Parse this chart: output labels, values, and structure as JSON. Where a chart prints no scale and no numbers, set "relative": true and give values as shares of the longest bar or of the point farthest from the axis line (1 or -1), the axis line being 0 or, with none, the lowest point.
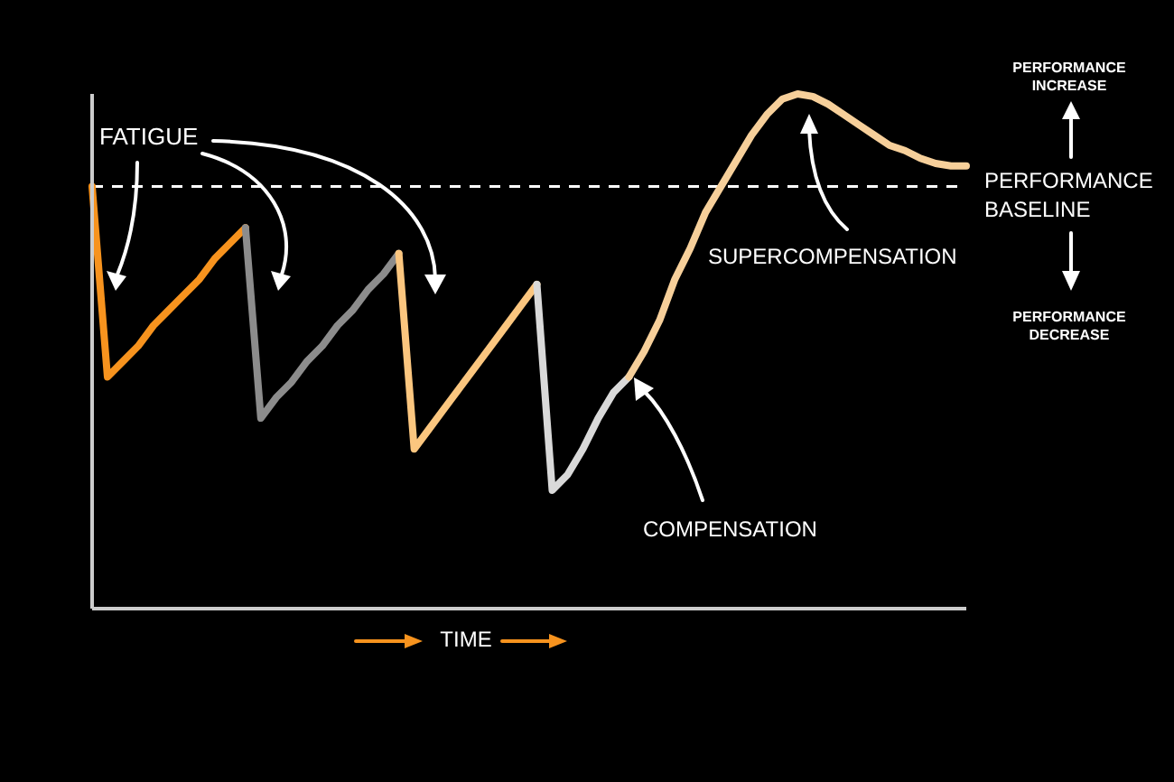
{
  "chart_data": {
    "type": "line",
    "relative": true,
    "xlabel": "TIME",
    "marker": "none",
    "line_style": "solid",
    "categories": [
      null,
      null,
      null,
      null,
      null,
      null,
      null,
      null,
      null,
      null,
      null,
      null,
      null,
      null,
      null,
      null,
      null,
      null,
      null,
      null,
      null,
      null,
      null,
      null,
      null,
      null,
      null,
      null,
      null,
      null,
      null,
      null,
      null,
      null,
      null,
      null,
      null,
      null,
      null,
      null,
      null,
      null,
      null,
      null,
      null,
      null,
      null,
      null,
      null,
      null,
      null,
      null,
      null,
      null,
      null,
      null,
      null,
      null
    ],
    "series": [
      {
        "color": "#f7931e",
        "values": [
          0.82,
          0.45,
          0.48,
          0.51,
          0.55,
          0.58,
          0.61,
          0.64,
          0.68,
          0.71,
          0.74,
          null,
          null,
          null,
          null,
          null,
          null,
          null,
          null,
          null,
          null,
          null,
          null,
          null,
          null,
          null,
          null,
          null,
          null,
          null,
          null,
          null,
          null,
          null,
          null,
          null,
          null,
          null,
          null,
          null,
          null,
          null,
          null,
          null,
          null,
          null,
          null,
          null,
          null,
          null,
          null,
          null,
          null,
          null,
          null,
          null,
          null,
          null
        ]
      },
      {
        "color": "#8c8c8c",
        "values": [
          null,
          null,
          null,
          null,
          null,
          null,
          null,
          null,
          null,
          null,
          0.74,
          0.37,
          0.41,
          0.44,
          0.48,
          0.51,
          0.55,
          0.58,
          0.62,
          0.65,
          0.69,
          null,
          null,
          null,
          null,
          null,
          null,
          null,
          null,
          null,
          null,
          null,
          null,
          null,
          null,
          null,
          null,
          null,
          null,
          null,
          null,
          null,
          null,
          null,
          null,
          null,
          null,
          null,
          null,
          null,
          null,
          null,
          null,
          null,
          null,
          null,
          null,
          null
        ]
      },
      {
        "color": "#fbc67f",
        "values": [
          null,
          null,
          null,
          null,
          null,
          null,
          null,
          null,
          null,
          null,
          null,
          null,
          null,
          null,
          null,
          null,
          null,
          null,
          null,
          null,
          0.69,
          0.31,
          0.35,
          0.39,
          0.43,
          0.47,
          0.51,
          0.55,
          0.59,
          0.63,
          null,
          null,
          null,
          null,
          null,
          null,
          null,
          null,
          null,
          null,
          null,
          null,
          null,
          null,
          null,
          null,
          null,
          null,
          null,
          null,
          null,
          null,
          null,
          null,
          null,
          null,
          null,
          null
        ]
      },
      {
        "color": "#d9d9d9",
        "values": [
          null,
          null,
          null,
          null,
          null,
          null,
          null,
          null,
          null,
          null,
          null,
          null,
          null,
          null,
          null,
          null,
          null,
          null,
          null,
          null,
          null,
          null,
          null,
          null,
          null,
          null,
          null,
          null,
          null,
          0.63,
          0.23,
          0.26,
          0.31,
          0.37,
          0.42,
          0.45,
          null,
          null,
          null,
          null,
          null,
          null,
          null,
          null,
          null,
          null,
          null,
          null,
          null,
          null,
          null,
          null,
          null,
          null,
          null,
          null,
          null,
          null
        ]
      },
      {
        "color": "#f6cf9a",
        "values": [
          null,
          null,
          null,
          null,
          null,
          null,
          null,
          null,
          null,
          null,
          null,
          null,
          null,
          null,
          null,
          null,
          null,
          null,
          null,
          null,
          null,
          null,
          null,
          null,
          null,
          null,
          null,
          null,
          null,
          null,
          null,
          null,
          null,
          null,
          null,
          0.45,
          0.5,
          0.56,
          0.64,
          0.7,
          0.77,
          0.82,
          0.87,
          0.92,
          0.96,
          0.99,
          1,
          0.995,
          0.98,
          0.96,
          0.94,
          0.92,
          0.9,
          0.89,
          0.875,
          0.865,
          0.86,
          0.86
        ]
      }
    ],
    "ref_lines": [
      {
        "axis": "y",
        "value": 0.82,
        "label": "PERFORMANCE BASELINE",
        "color": "#ffffff",
        "line_style": "dashed"
      }
    ],
    "annotations": [
      "FATIGUE",
      "COMPENSATION",
      "SUPERCOMPENSATION",
      "PERFORMANCE INCREASE",
      "PERFORMANCE DECREASE"
    ]
  }
}
